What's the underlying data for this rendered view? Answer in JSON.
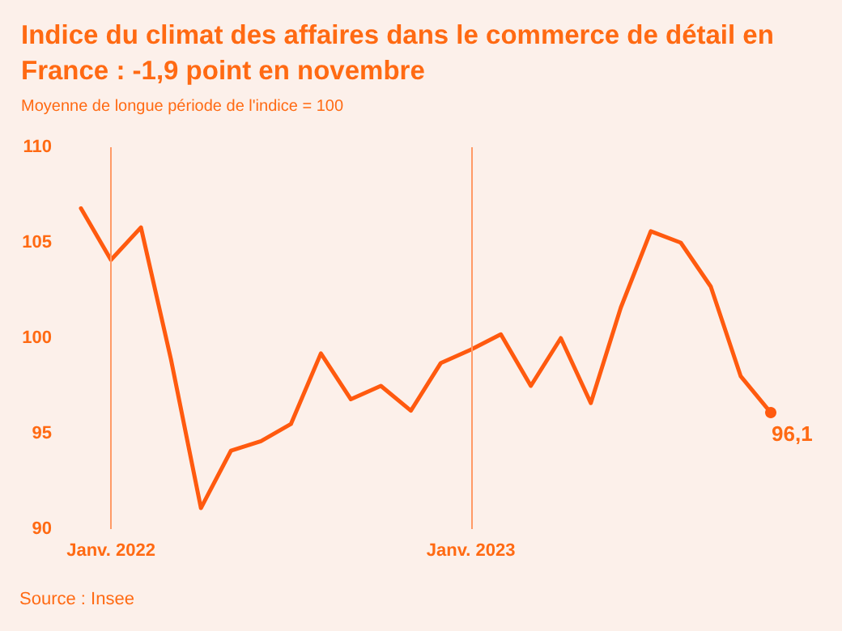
{
  "chart_data": {
    "type": "line",
    "title": "Indice du climat des affaires dans le commerce de détail en France : -1,9 point en novembre",
    "subtitle": "Moyenne de longue période de l'indice = 100",
    "categories": [
      null,
      "Janv. 2022",
      null,
      null,
      null,
      null,
      null,
      null,
      null,
      null,
      null,
      null,
      null,
      "Janv. 2023",
      null,
      null,
      null,
      null,
      null,
      null,
      null,
      null,
      null,
      null
    ],
    "series": [
      {
        "color": "#ff5a0f",
        "values": [
          106.8,
          104.1,
          105.8,
          98.9,
          91.1,
          94.1,
          94.6,
          95.5,
          99.2,
          96.8,
          97.5,
          96.2,
          98.7,
          99.4,
          100.2,
          97.5,
          100.0,
          96.6,
          101.6,
          105.6,
          105.0,
          102.7,
          98.0,
          96.1
        ],
        "value_labels": [
          null,
          null,
          null,
          null,
          null,
          null,
          null,
          null,
          null,
          null,
          null,
          null,
          null,
          null,
          null,
          null,
          null,
          null,
          null,
          null,
          null,
          null,
          null,
          "96,1"
        ]
      }
    ],
    "ylim": [
      90,
      110
    ],
    "yticks": [
      90,
      95,
      100,
      105,
      110
    ],
    "grid": false,
    "marker": "none",
    "line_style": "solid",
    "ref_lines": [
      {
        "axis": "x",
        "value": "Janv. 2022",
        "color": "#ff9a66"
      },
      {
        "axis": "x",
        "value": "Janv. 2023",
        "color": "#ff9a66"
      }
    ],
    "annotations": [
      "Source : Insee"
    ]
  }
}
